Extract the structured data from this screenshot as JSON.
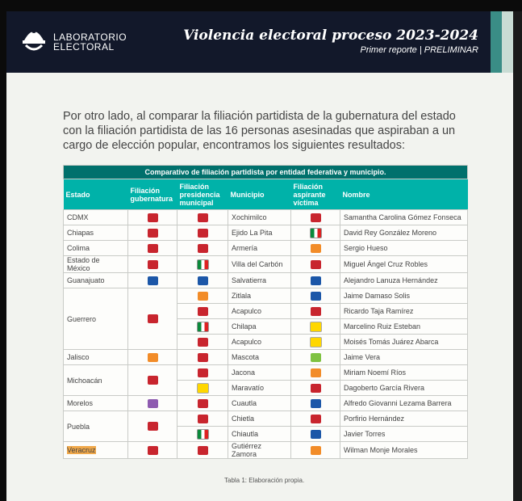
{
  "header": {
    "logo_line1": "LABORATORIO",
    "logo_line2": "ELECTORAL",
    "title": "Violencia electoral proceso 2023-2024",
    "subtitle": "Primer reporte | PRELIMINAR"
  },
  "intro": "Por otro lado, al comparar la filiación partidista de la gubernatura del estado con la filiación partidista de las 16 personas asesinadas que aspiraban a un cargo de elección popular, encontramos los siguientes resultados:",
  "table": {
    "caption": "Comparativo de filiación partidista por entidad federativa y municipio.",
    "columns": [
      "Estado",
      "Filiación gubernatura",
      "Filiación presidencia municipal",
      "Municipio",
      "Filiación aspirante víctima",
      "Nombre"
    ],
    "rows": [
      {
        "estado": "CDMX",
        "gob": "morena",
        "pres": "morena",
        "mun": "Xochimilco",
        "asp": "morena",
        "nombre": "Samantha Carolina Gómez Fonseca"
      },
      {
        "estado": "Chiapas",
        "gob": "morena",
        "pres": "morena",
        "mun": "Ejido La Pita",
        "asp": "pri",
        "nombre": "David Rey González Moreno"
      },
      {
        "estado": "Colima",
        "gob": "morena",
        "pres": "morena",
        "mun": "Armería",
        "asp": "mc",
        "nombre": "Sergio Hueso"
      },
      {
        "estado": "Estado de México",
        "gob": "morena",
        "pres": "pri",
        "mun": "Villa del Carbón",
        "asp": "morena",
        "nombre": "Miguel Ángel Cruz Robles"
      },
      {
        "estado": "Guanajuato",
        "gob": "pan",
        "pres": "pan",
        "mun": "Salvatierra",
        "asp": "pan",
        "nombre": "Alejandro Lanuza Hernández"
      },
      {
        "estado": "Guerrero",
        "gob": "morena",
        "pres": "mc",
        "mun": "Zitlala",
        "asp": "pan",
        "nombre": "Jaime Damaso Solis"
      },
      {
        "estado": "",
        "gob": "",
        "pres": "morena",
        "mun": "Acapulco",
        "asp": "morena",
        "nombre": "Ricardo Taja Ramírez"
      },
      {
        "estado": "",
        "gob": "",
        "pres": "pri",
        "mun": "Chilapa",
        "asp": "prd",
        "nombre": "Marcelino Ruiz Esteban"
      },
      {
        "estado": "",
        "gob": "",
        "pres": "morena",
        "mun": "Acapulco",
        "asp": "prd",
        "nombre": "Moisés Tomás Juárez Abarca"
      },
      {
        "estado": "Jalisco",
        "gob": "mc",
        "pres": "morena",
        "mun": "Mascota",
        "asp": "pvem",
        "nombre": "Jaime Vera"
      },
      {
        "estado": "Michoacán",
        "gob": "morena",
        "pres": "morena",
        "mun": "Jacona",
        "asp": "mc",
        "nombre": "Miriam Noemí Ríos"
      },
      {
        "estado": "",
        "gob": "",
        "pres": "prd",
        "mun": "Maravatío",
        "asp": "morena",
        "nombre": "Dagoberto García Rivera"
      },
      {
        "estado": "Morelos",
        "gob": "pes",
        "pres": "morena",
        "mun": "Cuautla",
        "asp": "pan",
        "nombre": "Alfredo Giovanni Lezama Barrera"
      },
      {
        "estado": "Puebla",
        "gob": "morena",
        "pres": "morena",
        "mun": "Chietla",
        "asp": "morena",
        "nombre": "Porfirio Hernández"
      },
      {
        "estado": "",
        "gob": "",
        "pres": "pri",
        "mun": "Chiautla",
        "asp": "pan",
        "nombre": "Javier Torres"
      },
      {
        "estado": "Veracruz",
        "gob": "morena",
        "pres": "morena",
        "mun": "Gutiérrez Zamora",
        "asp": "mc",
        "nombre": "Wilman Monje Morales"
      }
    ]
  },
  "table_caption": "Tabla 1: Elaboración propia."
}
